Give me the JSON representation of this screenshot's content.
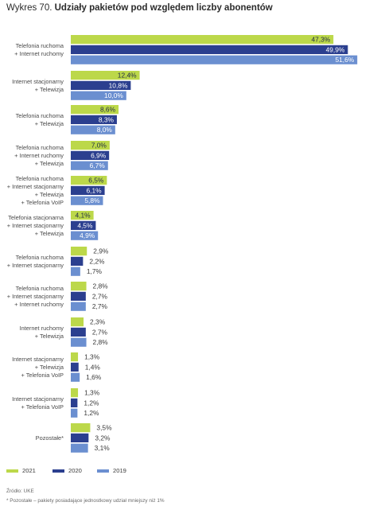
{
  "title": {
    "prefix": "Wykres 70.",
    "main": "Udziały pakietów pod względem liczby abonentów"
  },
  "chart_data": {
    "type": "bar",
    "orientation": "horizontal",
    "title": "Wykres 70. Udziały pakietów pod względem liczby abonentów",
    "xlim": [
      0,
      52
    ],
    "grid": false,
    "legend_position": "bottom-left",
    "categories": [
      [
        "Telefonia ruchoma",
        "+ Internet ruchomy"
      ],
      [
        "Internet stacjonarny",
        "+ Telewizja"
      ],
      [
        "Telefonia ruchoma",
        "+ Telewizja"
      ],
      [
        "Telefonia ruchoma",
        "+ Internet ruchomy",
        "+ Telewizja"
      ],
      [
        "Telefonia ruchoma",
        "+ Internet stacjonarny",
        "+ Telewizja",
        "+ Telefonia VoIP"
      ],
      [
        "Telefonia stacjonarna",
        "+ Internet stacjonarny",
        "+ Telewizja"
      ],
      [
        "Telefonia ruchoma",
        "+ Internet stacjonarny"
      ],
      [
        "Telefonia ruchoma",
        "+ Internet stacjonarny",
        "+ Internet ruchomy"
      ],
      [
        "Internet ruchomy",
        "+ Telewizja"
      ],
      [
        "Internet stacjonarny",
        "+ Telewizja",
        "+ Telefonia VoIP"
      ],
      [
        "Internet stacjonarny",
        "+ Telefonia VoIP"
      ],
      [
        "Pozostałe*"
      ]
    ],
    "series": [
      {
        "name": "2021",
        "color": "#bcd84a",
        "values": [
          47.3,
          12.4,
          8.6,
          7.0,
          6.5,
          4.1,
          2.9,
          2.8,
          2.3,
          1.3,
          1.3,
          3.5
        ],
        "labels": [
          "47,3%",
          "12,4%",
          "8,6%",
          "7,0%",
          "6,5%",
          "4,1%",
          "2,9%",
          "2,8%",
          "2,3%",
          "1,3%",
          "1,3%",
          "3,5%"
        ]
      },
      {
        "name": "2020",
        "color": "#2b3f8f",
        "values": [
          49.9,
          10.8,
          8.3,
          6.9,
          6.1,
          4.5,
          2.2,
          2.7,
          2.7,
          1.4,
          1.2,
          3.2
        ],
        "labels": [
          "49,9%",
          "10,8%",
          "8,3%",
          "6,9%",
          "6,1%",
          "4,5%",
          "2,2%",
          "2,7%",
          "2,7%",
          "1,4%",
          "1,2%",
          "3,2%"
        ]
      },
      {
        "name": "2019",
        "color": "#6b8fd0",
        "values": [
          51.6,
          10.0,
          8.0,
          6.7,
          5.8,
          4.9,
          1.7,
          2.7,
          2.8,
          1.6,
          1.2,
          3.1
        ],
        "labels": [
          "51,6%",
          "10,0%",
          "8,0%",
          "6,7%",
          "5,8%",
          "4,9%",
          "1,7%",
          "2,7%",
          "2,8%",
          "1,6%",
          "1,2%",
          "3,1%"
        ]
      }
    ]
  },
  "legend": [
    {
      "label": "2021",
      "color": "#bcd84a"
    },
    {
      "label": "2020",
      "color": "#2b3f8f"
    },
    {
      "label": "2019",
      "color": "#6b8fd0"
    }
  ],
  "notes": {
    "source": "Źródło: UKE",
    "footnote": "* Pozostałe – pakiety posiadające jednostkowy udział mniejszy niż 1%"
  }
}
